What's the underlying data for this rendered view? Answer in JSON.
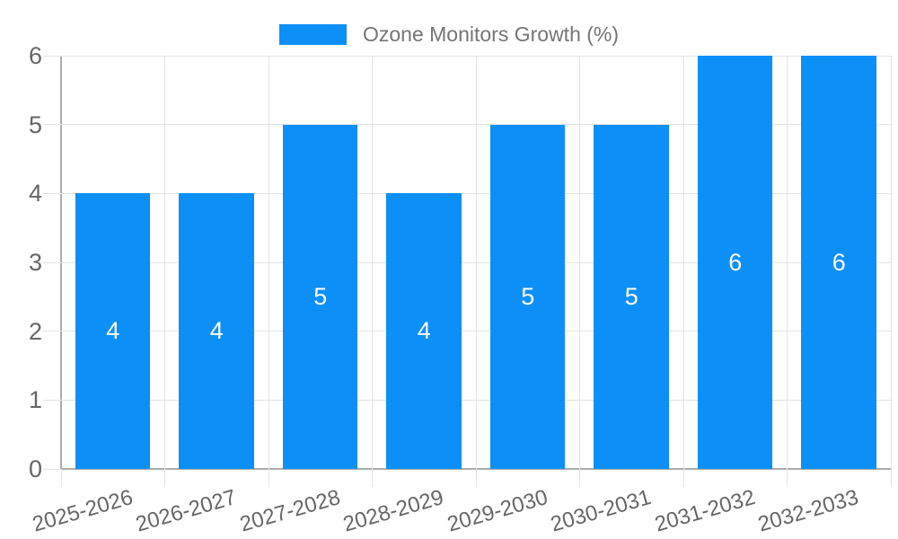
{
  "legend": {
    "label": "Ozone Monitors Growth (%)"
  },
  "chart_data": {
    "type": "bar",
    "title": "Ozone Monitors Growth (%)",
    "categories": [
      "2025-2026",
      "2026-2027",
      "2027-2028",
      "2028-2029",
      "2029-2030",
      "2030-2031",
      "2031-2032",
      "2032-2033"
    ],
    "values": [
      4,
      4,
      5,
      4,
      5,
      5,
      6,
      6
    ],
    "series": [
      {
        "name": "Ozone Monitors Growth (%)",
        "values": [
          4,
          4,
          5,
          4,
          5,
          5,
          6,
          6
        ]
      }
    ],
    "xlabel": "",
    "ylabel": "",
    "ylim": [
      0,
      6
    ],
    "yticks": [
      0,
      1,
      2,
      3,
      4,
      5,
      6
    ],
    "grid": true,
    "legend_position": "top-center",
    "data_labels": "inside-center",
    "x_label_rotation_deg": -16,
    "bar_color": "#0d8ff8",
    "data_label_color": "#ffffff",
    "grid_color": "#e3e3e3",
    "axis_color": "#ababab",
    "tick_label_color": "#666666",
    "legend_text_color": "#757575",
    "background_color": "#ffffff"
  }
}
